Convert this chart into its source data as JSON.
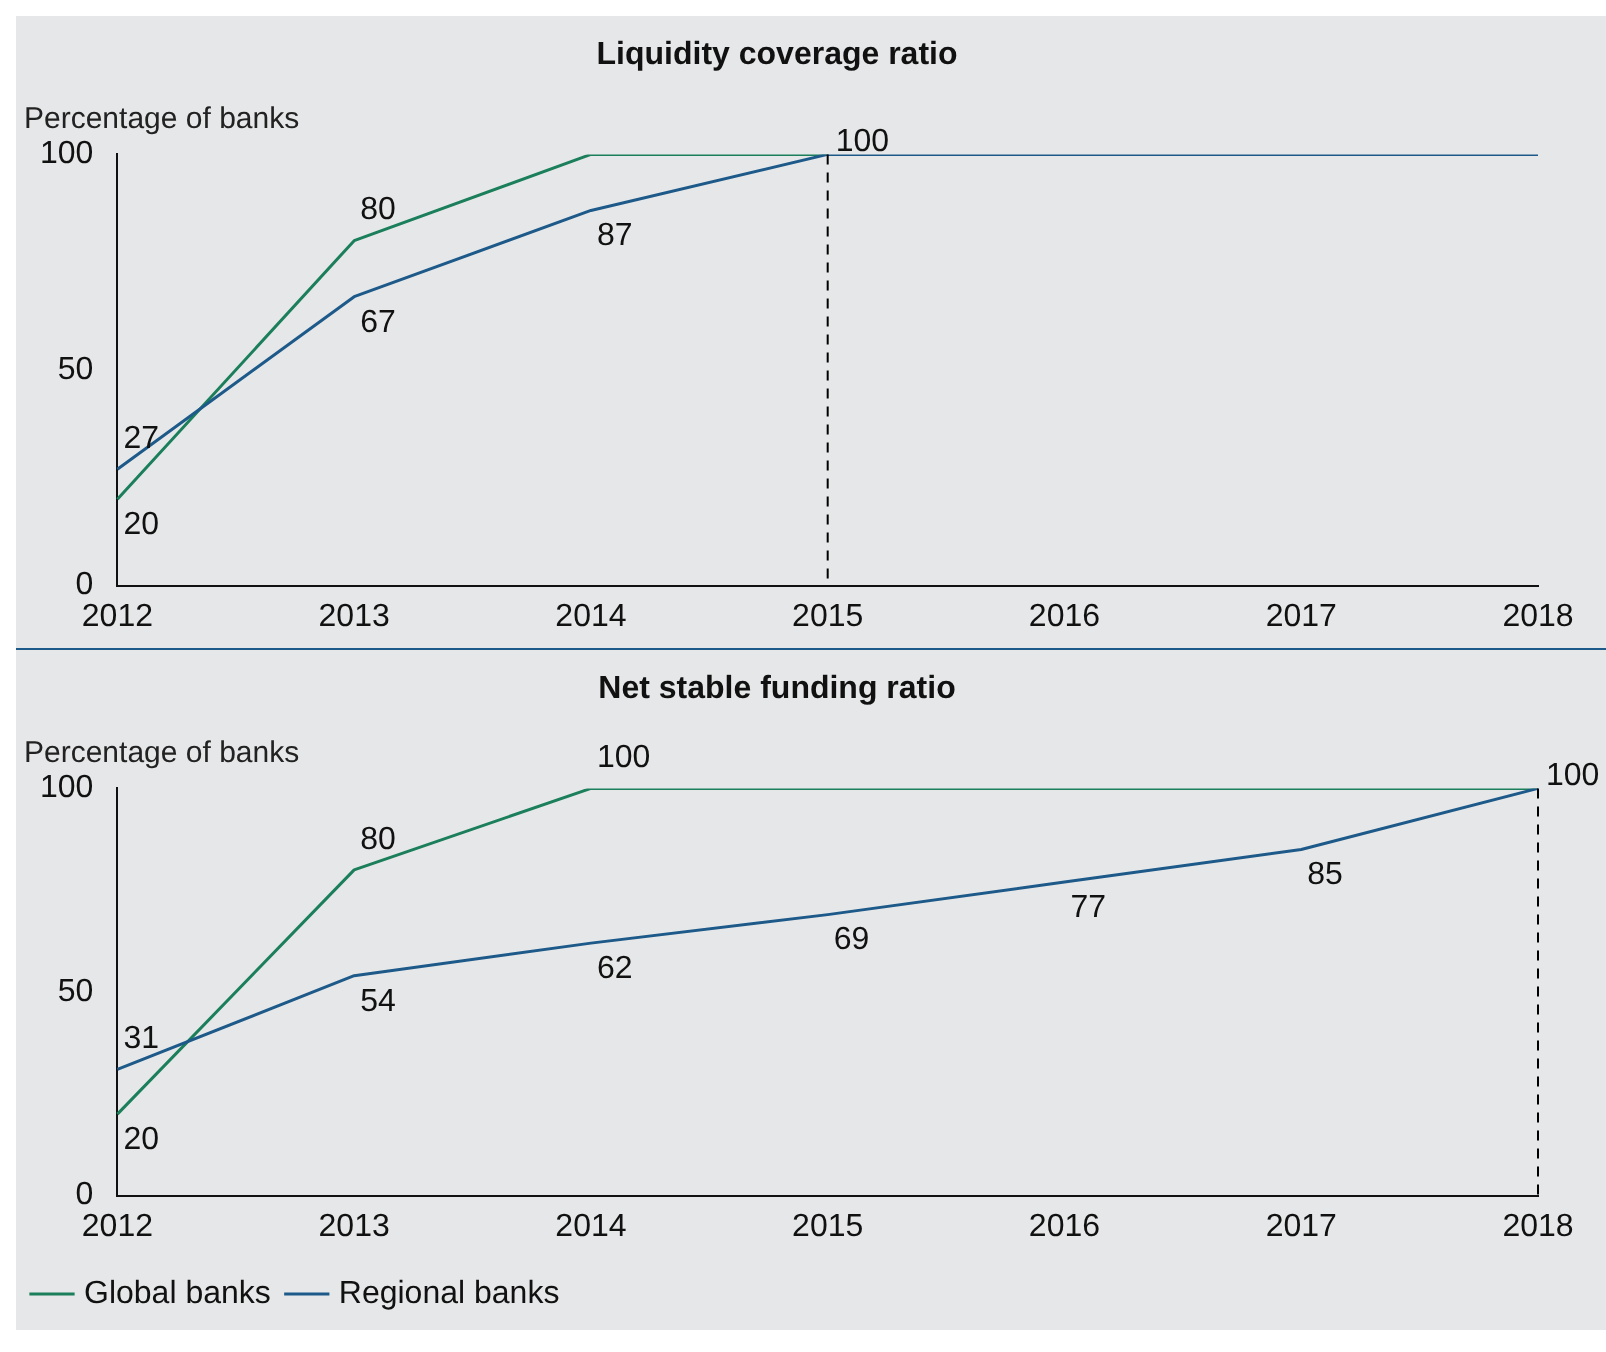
{
  "chart_data": [
    {
      "type": "line",
      "title": "Liquidity coverage ratio",
      "ylabel": "Percentage of banks",
      "categories": [
        "2012",
        "2013",
        "2014",
        "2015",
        "2016",
        "2017",
        "2018"
      ],
      "ylim": [
        0,
        100
      ],
      "yticks": [
        0,
        50,
        100
      ],
      "grid": false,
      "legend": false,
      "marker": "none",
      "line_style": "solid",
      "ref_lines": [
        {
          "axis": "x",
          "value": "2015",
          "line_style": "dashed",
          "color": "#000000"
        }
      ],
      "series": [
        {
          "color": "#1a7f5a",
          "values": [
            20,
            80,
            100,
            100,
            null,
            null,
            null
          ],
          "value_labels": [
            "20",
            "80",
            null,
            null,
            null,
            null,
            null
          ]
        },
        {
          "color": "#1d5a8a",
          "values": [
            27,
            67,
            87,
            100,
            100,
            100,
            100
          ],
          "value_labels": [
            "27",
            "67",
            "87",
            "100",
            null,
            null,
            null
          ]
        }
      ]
    },
    {
      "type": "line",
      "title": "Net stable funding ratio",
      "ylabel": "Percentage of banks",
      "categories": [
        "2012",
        "2013",
        "2014",
        "2015",
        "2016",
        "2017",
        "2018"
      ],
      "ylim": [
        0,
        100
      ],
      "yticks": [
        0,
        50,
        100
      ],
      "grid": false,
      "legend": "bottom",
      "marker": "none",
      "line_style": "solid",
      "ref_lines": [
        {
          "axis": "x",
          "value": "2018",
          "line_style": "dashed",
          "color": "#000000"
        }
      ],
      "series": [
        {
          "name": "Global banks",
          "color": "#1a7f5a",
          "values": [
            20,
            80,
            100,
            100,
            100,
            100,
            100
          ],
          "value_labels": [
            "20",
            "80",
            "100",
            null,
            null,
            null,
            null
          ]
        },
        {
          "name": "Regional banks",
          "color": "#1d5a8a",
          "values": [
            31,
            54,
            62,
            69,
            77,
            85,
            100
          ],
          "value_labels": [
            "31",
            "54",
            "62",
            "69",
            "77",
            "85",
            "100"
          ]
        }
      ]
    }
  ]
}
